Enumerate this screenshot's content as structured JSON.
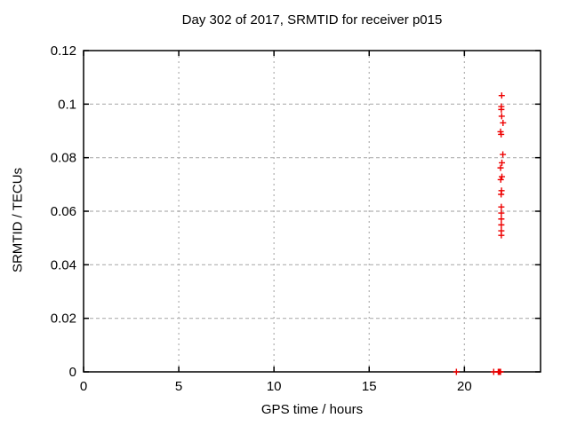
{
  "chart_data": {
    "type": "scatter",
    "title": "Day 302 of 2017, SRMTID for receiver p015",
    "xlabel": "GPS time / hours",
    "ylabel": "SRMTID / TECUs",
    "xlim": [
      0,
      24
    ],
    "ylim": [
      0,
      0.12
    ],
    "xticks": [
      {
        "value": 0,
        "label": "0"
      },
      {
        "value": 5,
        "label": "5"
      },
      {
        "value": 10,
        "label": "10"
      },
      {
        "value": 15,
        "label": "15"
      },
      {
        "value": 20,
        "label": "20"
      }
    ],
    "yticks": [
      {
        "value": 0,
        "label": "0"
      },
      {
        "value": 0.02,
        "label": "0.02"
      },
      {
        "value": 0.04,
        "label": "0.04"
      },
      {
        "value": 0.06,
        "label": "0.06"
      },
      {
        "value": 0.08,
        "label": "0.08"
      },
      {
        "value": 0.1,
        "label": "0.1"
      },
      {
        "value": 0.12,
        "label": "0.12"
      }
    ],
    "grid": true,
    "legend": "none",
    "marker": {
      "shape": "plus",
      "color": "#ee0000",
      "size": 7
    },
    "frame_color": "#000000",
    "grid_color": "#b0b0b0",
    "series": [
      {
        "name": "SRMTID",
        "points": [
          [
            21.96,
            0.1032
          ],
          [
            21.94,
            0.0991
          ],
          [
            21.94,
            0.098
          ],
          [
            21.96,
            0.0955
          ],
          [
            22.03,
            0.093
          ],
          [
            21.9,
            0.0897
          ],
          [
            21.93,
            0.0887
          ],
          [
            22.02,
            0.0812
          ],
          [
            21.97,
            0.0781
          ],
          [
            21.9,
            0.0762
          ],
          [
            21.97,
            0.0729
          ],
          [
            21.91,
            0.0718
          ],
          [
            21.95,
            0.0677
          ],
          [
            21.93,
            0.0663
          ],
          [
            21.94,
            0.0616
          ],
          [
            21.94,
            0.0593
          ],
          [
            21.94,
            0.0571
          ],
          [
            21.94,
            0.0549
          ],
          [
            21.94,
            0.0527
          ],
          [
            21.94,
            0.051
          ],
          [
            19.58,
            0.0
          ],
          [
            21.54,
            0.0
          ],
          [
            21.78,
            0.0
          ],
          [
            21.82,
            0.0
          ],
          [
            21.86,
            0.0
          ],
          [
            21.9,
            0.0
          ]
        ]
      }
    ]
  }
}
